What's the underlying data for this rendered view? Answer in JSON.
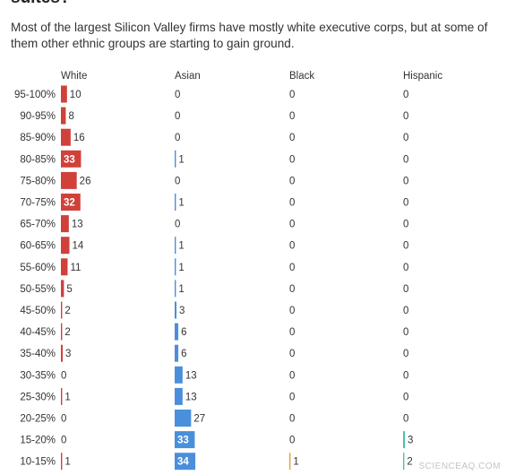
{
  "header": {
    "title": "suites?",
    "subtitle": "Most of the largest Silicon Valley firms have mostly white executive corps, but at some of them other ethnic groups are starting to gain ground."
  },
  "watermark": "SCIENCEAQ.COM",
  "colors": {
    "White": "#d0413a",
    "Asian": "#4a8fdb",
    "Black": "#e8a23a",
    "Hispanic": "#3fc8a8",
    "label": "#333333",
    "inner_label": "#ffffff"
  },
  "chart_data": {
    "type": "bar",
    "orientation": "horizontal",
    "layout": "small-multiples",
    "categories": [
      "95-100%",
      "90-95%",
      "85-90%",
      "80-85%",
      "75-80%",
      "70-75%",
      "65-70%",
      "60-65%",
      "55-60%",
      "50-55%",
      "45-50%",
      "40-45%",
      "35-40%",
      "30-35%",
      "25-30%",
      "20-25%",
      "15-20%",
      "10-15%"
    ],
    "series": [
      {
        "name": "White",
        "values": [
          10,
          8,
          16,
          33,
          26,
          32,
          13,
          14,
          11,
          5,
          2,
          2,
          3,
          0,
          1,
          0,
          0,
          1
        ]
      },
      {
        "name": "Asian",
        "values": [
          0,
          0,
          0,
          1,
          0,
          1,
          0,
          1,
          1,
          1,
          3,
          6,
          6,
          13,
          13,
          27,
          33,
          34
        ]
      },
      {
        "name": "Black",
        "values": [
          0,
          0,
          0,
          0,
          0,
          0,
          0,
          0,
          0,
          0,
          0,
          0,
          0,
          0,
          0,
          0,
          0,
          1
        ]
      },
      {
        "name": "Hispanic",
        "values": [
          0,
          0,
          0,
          0,
          0,
          0,
          0,
          0,
          0,
          0,
          0,
          0,
          0,
          0,
          0,
          0,
          3,
          2
        ]
      }
    ],
    "xlim": [
      0,
      36
    ],
    "grid": false,
    "value_labels": true
  }
}
